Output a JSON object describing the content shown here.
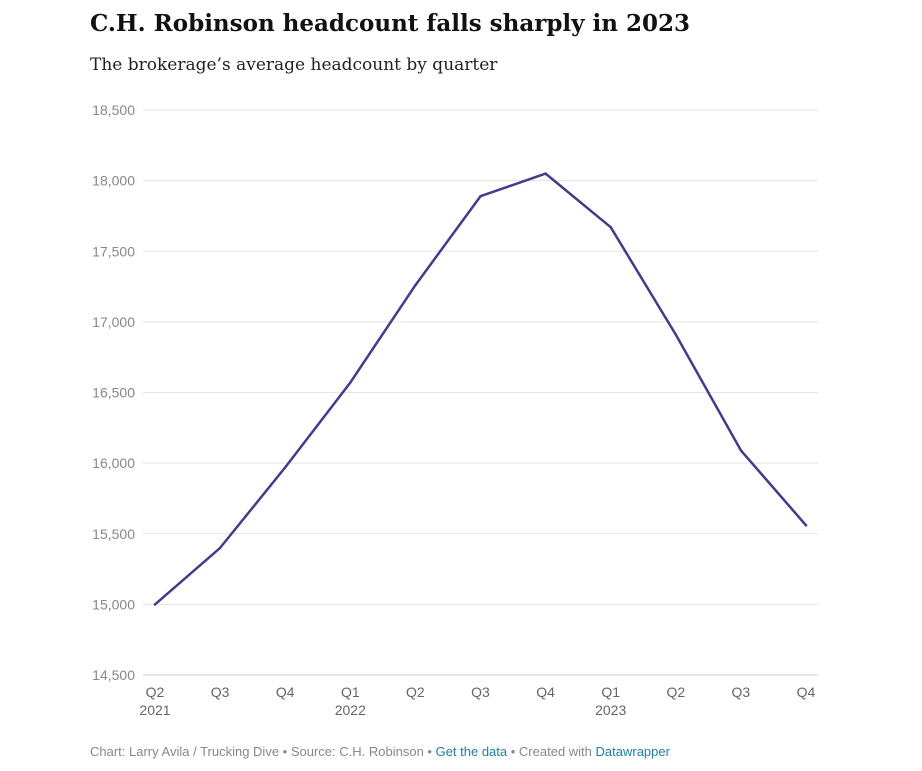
{
  "title": "C.H. Robinson headcount falls sharply in 2023",
  "subtitle": "The brokerage’s average headcount by quarter",
  "footer": {
    "credit": "Chart: Larry Avila / Trucking Dive",
    "sep1": " • ",
    "source": "Source: C.H. Robinson",
    "sep2": " • ",
    "get_data": "Get the data",
    "sep3": " • ",
    "created": "Created with ",
    "tool": "Datawrapper"
  },
  "colors": {
    "line": "#3f3d8c",
    "grid": "#e3e3e3"
  },
  "chart_data": {
    "type": "line",
    "title": "C.H. Robinson headcount falls sharply in 2023",
    "subtitle": "The brokerage’s average headcount by quarter",
    "xlabel": "",
    "ylabel": "",
    "ylim": [
      14500,
      18500
    ],
    "yticks": [
      14500,
      15000,
      15500,
      16000,
      16500,
      17000,
      17500,
      18000,
      18500
    ],
    "ytick_labels": [
      "14,500",
      "15,000",
      "15,500",
      "16,000",
      "16,500",
      "17,000",
      "17,500",
      "18,000",
      "18,500"
    ],
    "categories": [
      "Q2 2021",
      "Q3 2021",
      "Q4 2021",
      "Q1 2022",
      "Q2 2022",
      "Q3 2022",
      "Q4 2022",
      "Q1 2023",
      "Q2 2023",
      "Q3 2023",
      "Q4 2023"
    ],
    "x_tick_labels": [
      "Q2",
      "Q3",
      "Q4",
      "Q1",
      "Q2",
      "Q3",
      "Q4",
      "Q1",
      "Q2",
      "Q3",
      "Q4"
    ],
    "x_year_labels": [
      "2021",
      "",
      "",
      "2022",
      "",
      "",
      "",
      "2023",
      "",
      "",
      ""
    ],
    "values": [
      15000,
      15400,
      15970,
      16570,
      17260,
      17890,
      18050,
      17670,
      16910,
      16090,
      15560
    ],
    "grid": true,
    "legend": "none"
  }
}
